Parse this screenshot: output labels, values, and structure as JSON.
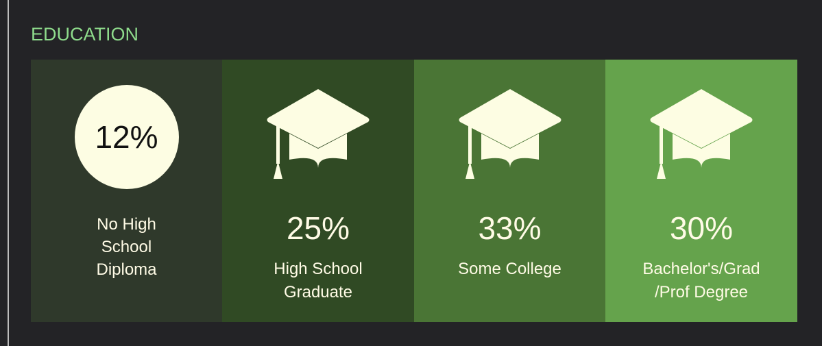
{
  "title": "EDUCATION",
  "items": [
    {
      "value": "12%",
      "label": [
        "No High",
        "School",
        "Diploma"
      ],
      "color": "#2f392b"
    },
    {
      "value": "25%",
      "label": [
        "High School",
        "Graduate"
      ],
      "color": "#304a24"
    },
    {
      "value": "33%",
      "label": [
        "Some College"
      ],
      "color": "#4a7535"
    },
    {
      "value": "30%",
      "label": [
        "Bachelor's/Grad",
        "/Prof Degree"
      ],
      "color": "#65a34c"
    }
  ]
}
